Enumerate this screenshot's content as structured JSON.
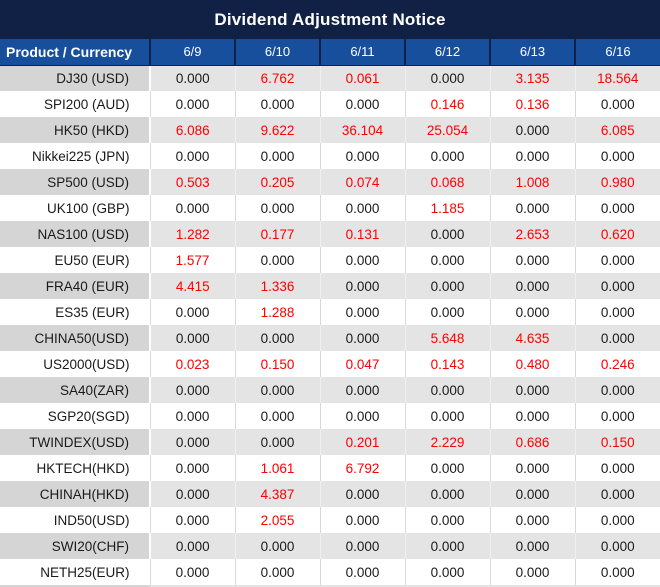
{
  "title": "Dividend Adjustment Notice",
  "colors": {
    "title_bg": "#102145",
    "header_bg": "#184F9D",
    "header_text": "#FFFFFF",
    "negative_value_red": "#FF0000",
    "value_text": "#1A1A1A",
    "row_alt_label_bg": "#D5D5D5",
    "row_alt_value_bg": "#E4E4E4",
    "row_bg": "#FFFFFF"
  },
  "table": {
    "header_label": "Product / Currency",
    "dates": [
      "6/9",
      "6/10",
      "6/11",
      "6/12",
      "6/13",
      "6/16"
    ],
    "rows": [
      {
        "product": "DJ30 (USD)",
        "values": [
          "0.000",
          "6.762",
          "0.061",
          "0.000",
          "3.135",
          "18.564"
        ],
        "red": [
          false,
          true,
          true,
          false,
          true,
          true
        ]
      },
      {
        "product": "SPI200 (AUD)",
        "values": [
          "0.000",
          "0.000",
          "0.000",
          "0.146",
          "0.136",
          "0.000"
        ],
        "red": [
          false,
          false,
          false,
          true,
          true,
          false
        ]
      },
      {
        "product": "HK50 (HKD)",
        "values": [
          "6.086",
          "9.622",
          "36.104",
          "25.054",
          "0.000",
          "6.085"
        ],
        "red": [
          true,
          true,
          true,
          true,
          false,
          true
        ]
      },
      {
        "product": "Nikkei225 (JPN)",
        "values": [
          "0.000",
          "0.000",
          "0.000",
          "0.000",
          "0.000",
          "0.000"
        ],
        "red": [
          false,
          false,
          false,
          false,
          false,
          false
        ]
      },
      {
        "product": "SP500 (USD)",
        "values": [
          "0.503",
          "0.205",
          "0.074",
          "0.068",
          "1.008",
          "0.980"
        ],
        "red": [
          true,
          true,
          true,
          true,
          true,
          true
        ]
      },
      {
        "product": "UK100 (GBP)",
        "values": [
          "0.000",
          "0.000",
          "0.000",
          "1.185",
          "0.000",
          "0.000"
        ],
        "red": [
          false,
          false,
          false,
          true,
          false,
          false
        ]
      },
      {
        "product": "NAS100 (USD)",
        "values": [
          "1.282",
          "0.177",
          "0.131",
          "0.000",
          "2.653",
          "0.620"
        ],
        "red": [
          true,
          true,
          true,
          false,
          true,
          true
        ]
      },
      {
        "product": "EU50 (EUR)",
        "values": [
          "1.577",
          "0.000",
          "0.000",
          "0.000",
          "0.000",
          "0.000"
        ],
        "red": [
          true,
          false,
          false,
          false,
          false,
          false
        ]
      },
      {
        "product": "FRA40 (EUR)",
        "values": [
          "4.415",
          "1.336",
          "0.000",
          "0.000",
          "0.000",
          "0.000"
        ],
        "red": [
          true,
          true,
          false,
          false,
          false,
          false
        ]
      },
      {
        "product": "ES35 (EUR)",
        "values": [
          "0.000",
          "1.288",
          "0.000",
          "0.000",
          "0.000",
          "0.000"
        ],
        "red": [
          false,
          true,
          false,
          false,
          false,
          false
        ]
      },
      {
        "product": "CHINA50(USD)",
        "values": [
          "0.000",
          "0.000",
          "0.000",
          "5.648",
          "4.635",
          "0.000"
        ],
        "red": [
          false,
          false,
          false,
          true,
          true,
          false
        ]
      },
      {
        "product": "US2000(USD)",
        "values": [
          "0.023",
          "0.150",
          "0.047",
          "0.143",
          "0.480",
          "0.246"
        ],
        "red": [
          true,
          true,
          true,
          true,
          true,
          true
        ]
      },
      {
        "product": "SA40(ZAR)",
        "values": [
          "0.000",
          "0.000",
          "0.000",
          "0.000",
          "0.000",
          "0.000"
        ],
        "red": [
          false,
          false,
          false,
          false,
          false,
          false
        ]
      },
      {
        "product": "SGP20(SGD)",
        "values": [
          "0.000",
          "0.000",
          "0.000",
          "0.000",
          "0.000",
          "0.000"
        ],
        "red": [
          false,
          false,
          false,
          false,
          false,
          false
        ]
      },
      {
        "product": "TWINDEX(USD)",
        "values": [
          "0.000",
          "0.000",
          "0.201",
          "2.229",
          "0.686",
          "0.150"
        ],
        "red": [
          false,
          false,
          true,
          true,
          true,
          true
        ]
      },
      {
        "product": "HKTECH(HKD)",
        "values": [
          "0.000",
          "1.061",
          "6.792",
          "0.000",
          "0.000",
          "0.000"
        ],
        "red": [
          false,
          true,
          true,
          false,
          false,
          false
        ]
      },
      {
        "product": "CHINAH(HKD)",
        "values": [
          "0.000",
          "4.387",
          "0.000",
          "0.000",
          "0.000",
          "0.000"
        ],
        "red": [
          false,
          true,
          false,
          false,
          false,
          false
        ]
      },
      {
        "product": "IND50(USD)",
        "values": [
          "0.000",
          "2.055",
          "0.000",
          "0.000",
          "0.000",
          "0.000"
        ],
        "red": [
          false,
          true,
          false,
          false,
          false,
          false
        ]
      },
      {
        "product": "SWI20(CHF)",
        "values": [
          "0.000",
          "0.000",
          "0.000",
          "0.000",
          "0.000",
          "0.000"
        ],
        "red": [
          false,
          false,
          false,
          false,
          false,
          false
        ]
      },
      {
        "product": "NETH25(EUR)",
        "values": [
          "0.000",
          "0.000",
          "0.000",
          "0.000",
          "0.000",
          "0.000"
        ],
        "red": [
          false,
          false,
          false,
          false,
          false,
          false
        ]
      }
    ]
  }
}
